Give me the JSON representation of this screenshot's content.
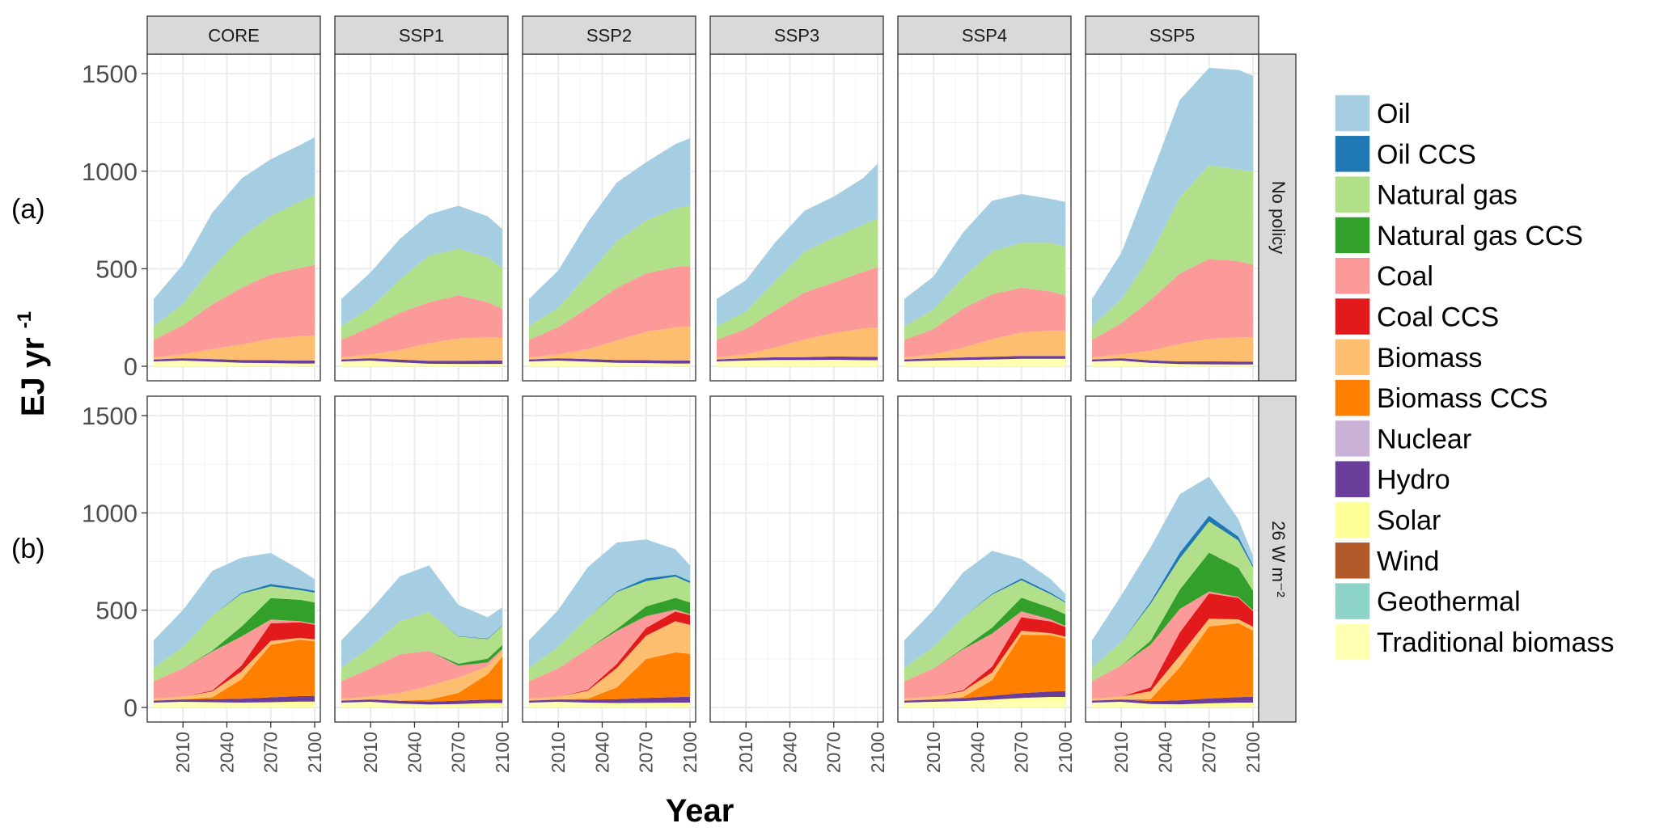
{
  "chart_data": {
    "type": "area",
    "stacked": true,
    "facet_columns": [
      "CORE",
      "SSP1",
      "SSP2",
      "SSP3",
      "SSP4",
      "SSP5"
    ],
    "facet_rows": [
      {
        "label": "No policy",
        "tag": "(a)"
      },
      {
        "label": "26 W m⁻²",
        "tag": "(b)"
      }
    ],
    "ylabel_main": "EJ yr",
    "ylabel_exp": "-1",
    "xlabel": "Year",
    "ylim": [
      0,
      1600
    ],
    "yticks": [
      0,
      500,
      1000,
      1500
    ],
    "xlim": [
      1990,
      2100
    ],
    "xticks": [
      2010,
      2040,
      2070,
      2100
    ],
    "years": [
      1990,
      2010,
      2030,
      2050,
      2070,
      2090,
      2100
    ],
    "legend_position": "right",
    "series_order": [
      "Traditional biomass",
      "Geothermal",
      "Wind",
      "Solar",
      "Hydro",
      "Nuclear",
      "Biomass CCS",
      "Biomass",
      "Coal CCS",
      "Coal",
      "Natural gas CCS",
      "Natural gas",
      "Oil CCS",
      "Oil"
    ],
    "legend": [
      {
        "name": "Oil",
        "color": "#a6cee3"
      },
      {
        "name": "Oil CCS",
        "color": "#1f78b4"
      },
      {
        "name": "Natural gas",
        "color": "#b2df8a"
      },
      {
        "name": "Natural gas CCS",
        "color": "#33a02c"
      },
      {
        "name": "Coal",
        "color": "#fb9a99"
      },
      {
        "name": "Coal CCS",
        "color": "#e31a1c"
      },
      {
        "name": "Biomass",
        "color": "#fdbf6f"
      },
      {
        "name": "Biomass CCS",
        "color": "#ff7f00"
      },
      {
        "name": "Nuclear",
        "color": "#cab2d6"
      },
      {
        "name": "Hydro",
        "color": "#6a3d9a"
      },
      {
        "name": "Solar",
        "color": "#ffff99"
      },
      {
        "name": "Wind",
        "color": "#b15928"
      },
      {
        "name": "Geothermal",
        "color": "#8dd3c7"
      },
      {
        "name": "Traditional biomass",
        "color": "#ffffb3"
      }
    ],
    "panels": [
      {
        "row": 0,
        "col": 0,
        "series": {
          "Traditional biomass": [
            25,
            28,
            22,
            15,
            12,
            10,
            10
          ],
          "Solar": [
            0,
            1,
            2,
            3,
            4,
            4,
            4
          ],
          "Hydro": [
            10,
            12,
            13,
            14,
            15,
            15,
            15
          ],
          "Nuclear": [
            0,
            0,
            0,
            0,
            0,
            0,
            0
          ],
          "Biomass": [
            10,
            20,
            50,
            80,
            110,
            125,
            130
          ],
          "Coal": [
            90,
            150,
            230,
            290,
            330,
            350,
            360
          ],
          "Natural gas": [
            70,
            110,
            190,
            260,
            300,
            340,
            360
          ],
          "Oil": [
            140,
            200,
            280,
            300,
            290,
            290,
            295
          ]
        }
      },
      {
        "row": 0,
        "col": 1,
        "series": {
          "Traditional biomass": [
            25,
            28,
            18,
            10,
            8,
            8,
            8
          ],
          "Solar": [
            0,
            1,
            2,
            3,
            4,
            4,
            4
          ],
          "Hydro": [
            10,
            12,
            14,
            15,
            16,
            17,
            17
          ],
          "Nuclear": [
            0,
            0,
            0,
            0,
            0,
            0,
            0
          ],
          "Biomass": [
            10,
            20,
            50,
            90,
            115,
            120,
            115
          ],
          "Coal": [
            90,
            140,
            190,
            210,
            220,
            180,
            150
          ],
          "Natural gas": [
            70,
            100,
            170,
            240,
            240,
            230,
            210
          ],
          "Oil": [
            140,
            180,
            210,
            210,
            220,
            210,
            200
          ]
        }
      },
      {
        "row": 0,
        "col": 2,
        "series": {
          "Traditional biomass": [
            25,
            28,
            22,
            15,
            12,
            10,
            10
          ],
          "Solar": [
            0,
            1,
            2,
            3,
            4,
            4,
            4
          ],
          "Hydro": [
            10,
            12,
            13,
            14,
            15,
            15,
            15
          ],
          "Nuclear": [
            0,
            0,
            0,
            0,
            0,
            0,
            0
          ],
          "Biomass": [
            10,
            20,
            50,
            100,
            145,
            170,
            175
          ],
          "Coal": [
            90,
            140,
            210,
            270,
            300,
            310,
            310
          ],
          "Natural gas": [
            70,
            100,
            170,
            240,
            270,
            300,
            310
          ],
          "Oil": [
            140,
            190,
            270,
            300,
            300,
            330,
            345
          ]
        }
      },
      {
        "row": 0,
        "col": 3,
        "series": {
          "Traditional biomass": [
            25,
            28,
            30,
            30,
            30,
            28,
            28
          ],
          "Solar": [
            0,
            1,
            2,
            2,
            3,
            3,
            3
          ],
          "Hydro": [
            10,
            12,
            14,
            15,
            17,
            18,
            18
          ],
          "Nuclear": [
            0,
            0,
            0,
            0,
            0,
            0,
            0
          ],
          "Biomass": [
            10,
            20,
            50,
            90,
            120,
            145,
            150
          ],
          "Coal": [
            90,
            130,
            190,
            240,
            260,
            290,
            310
          ],
          "Natural gas": [
            70,
            90,
            150,
            210,
            230,
            240,
            250
          ],
          "Oil": [
            140,
            160,
            200,
            210,
            210,
            240,
            280
          ]
        }
      },
      {
        "row": 0,
        "col": 4,
        "series": {
          "Traditional biomass": [
            25,
            28,
            30,
            32,
            34,
            34,
            34
          ],
          "Solar": [
            0,
            1,
            2,
            3,
            4,
            4,
            4
          ],
          "Hydro": [
            10,
            12,
            13,
            14,
            15,
            15,
            15
          ],
          "Nuclear": [
            0,
            0,
            0,
            0,
            0,
            0,
            0
          ],
          "Biomass": [
            10,
            20,
            50,
            90,
            120,
            130,
            130
          ],
          "Coal": [
            90,
            130,
            200,
            230,
            230,
            200,
            180
          ],
          "Natural gas": [
            70,
            100,
            160,
            220,
            230,
            250,
            250
          ],
          "Oil": [
            140,
            170,
            230,
            260,
            250,
            225,
            230
          ]
        }
      },
      {
        "row": 0,
        "col": 5,
        "series": {
          "Traditional biomass": [
            25,
            28,
            15,
            8,
            6,
            5,
            5
          ],
          "Solar": [
            0,
            1,
            2,
            3,
            4,
            4,
            4
          ],
          "Hydro": [
            10,
            12,
            13,
            14,
            15,
            15,
            15
          ],
          "Nuclear": [
            0,
            0,
            0,
            0,
            0,
            0,
            0
          ],
          "Biomass": [
            10,
            20,
            50,
            90,
            115,
            125,
            125
          ],
          "Coal": [
            90,
            160,
            260,
            360,
            410,
            390,
            370
          ],
          "Natural gas": [
            70,
            120,
            230,
            390,
            480,
            470,
            480
          ],
          "Oil": [
            140,
            240,
            400,
            500,
            500,
            510,
            490
          ]
        }
      },
      {
        "row": 1,
        "col": 0,
        "series": {
          "Traditional biomass": [
            25,
            28,
            22,
            15,
            12,
            10,
            10
          ],
          "Solar": [
            0,
            1,
            5,
            10,
            15,
            20,
            20
          ],
          "Hydro": [
            10,
            12,
            15,
            20,
            25,
            28,
            30
          ],
          "Nuclear": [
            0,
            0,
            0,
            0,
            0,
            0,
            0
          ],
          "Biomass CCS": [
            0,
            0,
            10,
            100,
            270,
            290,
            280
          ],
          "Biomass": [
            10,
            15,
            30,
            40,
            20,
            10,
            10
          ],
          "Coal CCS": [
            0,
            0,
            5,
            30,
            90,
            80,
            75
          ],
          "Coal": [
            90,
            145,
            200,
            150,
            20,
            5,
            5
          ],
          "Natural gas CCS": [
            0,
            0,
            5,
            50,
            110,
            110,
            110
          ],
          "Natural gas": [
            70,
            110,
            180,
            170,
            60,
            50,
            50
          ],
          "Oil CCS": [
            0,
            0,
            0,
            5,
            12,
            10,
            10
          ],
          "Oil": [
            140,
            190,
            230,
            180,
            160,
            95,
            60
          ]
        }
      },
      {
        "row": 1,
        "col": 1,
        "series": {
          "Traditional biomass": [
            25,
            28,
            18,
            10,
            8,
            8,
            8
          ],
          "Solar": [
            0,
            1,
            2,
            5,
            10,
            15,
            15
          ],
          "Hydro": [
            10,
            12,
            14,
            15,
            17,
            18,
            18
          ],
          "Nuclear": [
            0,
            0,
            0,
            0,
            0,
            0,
            0
          ],
          "Biomass CCS": [
            0,
            0,
            0,
            10,
            40,
            130,
            220
          ],
          "Biomass": [
            10,
            15,
            40,
            70,
            80,
            40,
            30
          ],
          "Coal": [
            90,
            145,
            200,
            180,
            60,
            20,
            10
          ],
          "Natural gas CCS": [
            0,
            0,
            0,
            0,
            10,
            20,
            20
          ],
          "Natural gas": [
            70,
            110,
            170,
            200,
            140,
            100,
            100
          ],
          "Oil CCS": [
            0,
            0,
            0,
            0,
            2,
            3,
            3
          ],
          "Oil": [
            140,
            190,
            230,
            240,
            160,
            110,
            90
          ]
        }
      },
      {
        "row": 1,
        "col": 2,
        "series": {
          "Traditional biomass": [
            25,
            28,
            22,
            15,
            12,
            10,
            10
          ],
          "Solar": [
            0,
            1,
            3,
            8,
            12,
            15,
            15
          ],
          "Hydro": [
            10,
            12,
            15,
            20,
            25,
            28,
            30
          ],
          "Nuclear": [
            0,
            0,
            0,
            0,
            0,
            0,
            0
          ],
          "Biomass CCS": [
            0,
            0,
            5,
            60,
            200,
            230,
            220
          ],
          "Biomass": [
            10,
            15,
            40,
            100,
            120,
            160,
            150
          ],
          "Coal CCS": [
            0,
            0,
            5,
            20,
            40,
            50,
            50
          ],
          "Coal": [
            90,
            145,
            210,
            170,
            60,
            10,
            5
          ],
          "Natural gas CCS": [
            0,
            0,
            0,
            10,
            50,
            60,
            60
          ],
          "Natural gas": [
            70,
            110,
            160,
            190,
            130,
            110,
            100
          ],
          "Oil CCS": [
            0,
            0,
            0,
            5,
            15,
            10,
            10
          ],
          "Oil": [
            140,
            190,
            260,
            250,
            200,
            130,
            80
          ]
        }
      },
      {
        "row": 1,
        "col": 4,
        "series": {
          "Traditional biomass": [
            25,
            28,
            30,
            32,
            34,
            34,
            34
          ],
          "Solar": [
            0,
            1,
            3,
            8,
            15,
            20,
            20
          ],
          "Hydro": [
            10,
            12,
            15,
            20,
            25,
            28,
            30
          ],
          "Nuclear": [
            0,
            0,
            0,
            0,
            0,
            0,
            0
          ],
          "Biomass CCS": [
            0,
            0,
            5,
            80,
            300,
            290,
            270
          ],
          "Biomass": [
            10,
            15,
            30,
            40,
            20,
            10,
            10
          ],
          "Coal CCS": [
            0,
            0,
            5,
            30,
            70,
            60,
            50
          ],
          "Coal": [
            90,
            145,
            210,
            170,
            30,
            10,
            5
          ],
          "Natural gas CCS": [
            0,
            0,
            5,
            30,
            70,
            60,
            60
          ],
          "Natural gas": [
            70,
            110,
            160,
            170,
            90,
            70,
            60
          ],
          "Oil CCS": [
            0,
            0,
            0,
            5,
            10,
            8,
            5
          ],
          "Oil": [
            140,
            190,
            230,
            220,
            100,
            70,
            40
          ]
        }
      },
      {
        "row": 1,
        "col": 5,
        "series": {
          "Traditional biomass": [
            25,
            28,
            15,
            8,
            6,
            5,
            5
          ],
          "Solar": [
            0,
            1,
            3,
            8,
            15,
            20,
            20
          ],
          "Hydro": [
            10,
            12,
            15,
            20,
            25,
            28,
            30
          ],
          "Nuclear": [
            0,
            0,
            0,
            0,
            0,
            0,
            0
          ],
          "Biomass CCS": [
            0,
            0,
            10,
            170,
            370,
            380,
            340
          ],
          "Biomass": [
            10,
            15,
            40,
            60,
            40,
            20,
            20
          ],
          "Coal CCS": [
            0,
            0,
            20,
            120,
            130,
            110,
            80
          ],
          "Coal": [
            90,
            160,
            220,
            120,
            10,
            5,
            5
          ],
          "Natural gas CCS": [
            0,
            0,
            20,
            100,
            200,
            150,
            100
          ],
          "Natural gas": [
            70,
            120,
            190,
            160,
            160,
            140,
            120
          ],
          "Oil CCS": [
            0,
            0,
            10,
            30,
            30,
            20,
            10
          ],
          "Oil": [
            140,
            240,
            280,
            300,
            200,
            90,
            50
          ]
        }
      }
    ]
  }
}
